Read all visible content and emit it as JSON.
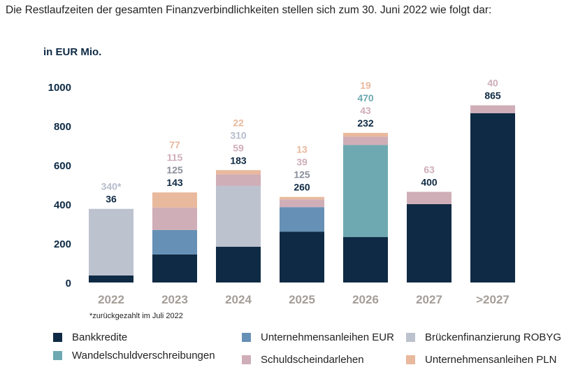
{
  "intro_text": "Die Restlaufzeiten der gesamten Finanzverbindlichkeiten stellen sich zum 30. Juni 2022 wie folgt dar:",
  "chart_data": {
    "type": "bar",
    "stacked": true,
    "unit_label": "in EUR Mio.",
    "categories": [
      "2022",
      "2023",
      "2024",
      "2025",
      "2026",
      "2027",
      ">2027"
    ],
    "ylim": [
      0,
      1000
    ],
    "yticks": [
      0,
      200,
      400,
      600,
      800,
      1000
    ],
    "series": [
      {
        "name": "Bankkredite",
        "color": "#0f2a44",
        "values": [
          36,
          143,
          183,
          260,
          232,
          400,
          865
        ]
      },
      {
        "name": "Unternehmensanleihen EUR",
        "color": "#6690b6",
        "values": [
          0,
          125,
          0,
          125,
          0,
          0,
          0
        ]
      },
      {
        "name": "Brückenfinanzierung ROBYG",
        "color": "#bdc2cf",
        "values": [
          340,
          0,
          310,
          0,
          0,
          0,
          0
        ]
      },
      {
        "name": "Wandelschuldverschreibungen",
        "color": "#6ea9b1",
        "values": [
          0,
          0,
          0,
          0,
          470,
          0,
          0
        ]
      },
      {
        "name": "Schuldscheindarlehen",
        "color": "#cfaeb8",
        "values": [
          0,
          115,
          59,
          39,
          43,
          63,
          40
        ]
      },
      {
        "name": "Unternehmensanleihen PLN",
        "color": "#e9b99d",
        "values": [
          0,
          77,
          22,
          13,
          19,
          0,
          0
        ]
      }
    ],
    "data_labels": [
      [
        {
          "text": "340*",
          "color": "#b5bccb"
        },
        {
          "text": "36",
          "color": "#0f2a44"
        }
      ],
      [
        {
          "text": "77",
          "color": "#e9b99d"
        },
        {
          "text": "115",
          "color": "#cfaeb8"
        },
        {
          "text": "125",
          "color": "#8a8e9a"
        },
        {
          "text": "143",
          "color": "#0f2a44"
        }
      ],
      [
        {
          "text": "22",
          "color": "#e9b99d"
        },
        {
          "text": "310",
          "color": "#b5bccb"
        },
        {
          "text": "59",
          "color": "#cfaeb8"
        },
        {
          "text": "183",
          "color": "#0f2a44"
        }
      ],
      [
        {
          "text": "13",
          "color": "#e9b99d"
        },
        {
          "text": "39",
          "color": "#cfaeb8"
        },
        {
          "text": "125",
          "color": "#8a8e9a"
        },
        {
          "text": "260",
          "color": "#0f2a44"
        }
      ],
      [
        {
          "text": "19",
          "color": "#e9b99d"
        },
        {
          "text": "470",
          "color": "#6ea9b1"
        },
        {
          "text": "43",
          "color": "#cfaeb8"
        },
        {
          "text": "232",
          "color": "#0f2a44"
        }
      ],
      [
        {
          "text": "63",
          "color": "#cfaeb8"
        },
        {
          "text": "400",
          "color": "#0f2a44"
        }
      ],
      [
        {
          "text": "40",
          "color": "#cfaeb8"
        },
        {
          "text": "865",
          "color": "#0f2a44"
        }
      ]
    ],
    "footnote": "*zurückgezahlt im Juli 2022",
    "legend": [
      {
        "name": "Bankkredite",
        "color": "#0f2a44"
      },
      {
        "name": "Unternehmensanleihen EUR",
        "color": "#6690b6"
      },
      {
        "name": "Brückenfinanzierung ROBYG",
        "color": "#bdc2cf"
      },
      {
        "name": "Wandelschuldverschreibungen",
        "color": "#6ea9b1"
      },
      {
        "name": "Schuldscheindarlehen",
        "color": "#cfaeb8"
      },
      {
        "name": "Unternehmensanleihen PLN",
        "color": "#e9b99d"
      }
    ]
  }
}
